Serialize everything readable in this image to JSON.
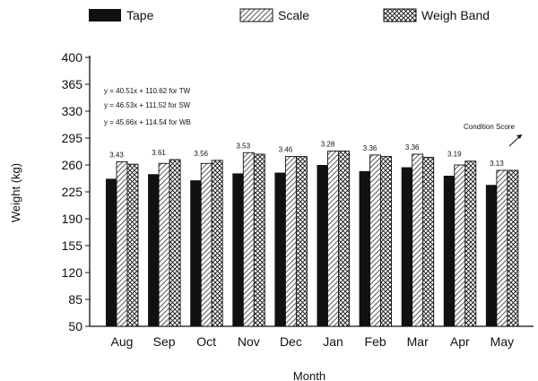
{
  "chart_data": {
    "type": "bar",
    "xlabel": "Month",
    "ylabel": "Weight (kg)",
    "ylim": [
      50,
      400
    ],
    "yticks": [
      50,
      85,
      120,
      155,
      190,
      225,
      260,
      295,
      330,
      365,
      400
    ],
    "grid": false,
    "legend_position": "top",
    "categories": [
      "Aug",
      "Sep",
      "Oct",
      "Nov",
      "Dec",
      "Jan",
      "Feb",
      "Mar",
      "Apr",
      "May"
    ],
    "series": [
      {
        "name": "Tape",
        "pattern": "solid",
        "color": "#111111",
        "values": [
          242,
          248,
          240,
          249,
          250,
          260,
          252,
          257,
          246,
          234
        ]
      },
      {
        "name": "Scale",
        "pattern": "diagonal-hatch",
        "color": "#111111",
        "values": [
          264,
          262,
          262,
          276,
          271,
          278,
          273,
          274,
          260,
          253
        ]
      },
      {
        "name": "Weigh Band",
        "pattern": "crosshatch",
        "color": "#111111",
        "values": [
          261,
          267,
          266,
          274,
          271,
          278,
          271,
          270,
          265,
          253
        ]
      }
    ],
    "condition_scores": [
      "3.43",
      "3.61",
      "3.56",
      "3.53",
      "3.46",
      "3.28",
      "3.36",
      "3.36",
      "3.19",
      "3.13"
    ],
    "condition_score_label": "Condition Score",
    "equations": [
      "y = 40.51x + 110.62 for TW",
      "y = 46.53x + 111.52 for SW",
      "y = 45.66x + 114.54 for WB"
    ]
  }
}
